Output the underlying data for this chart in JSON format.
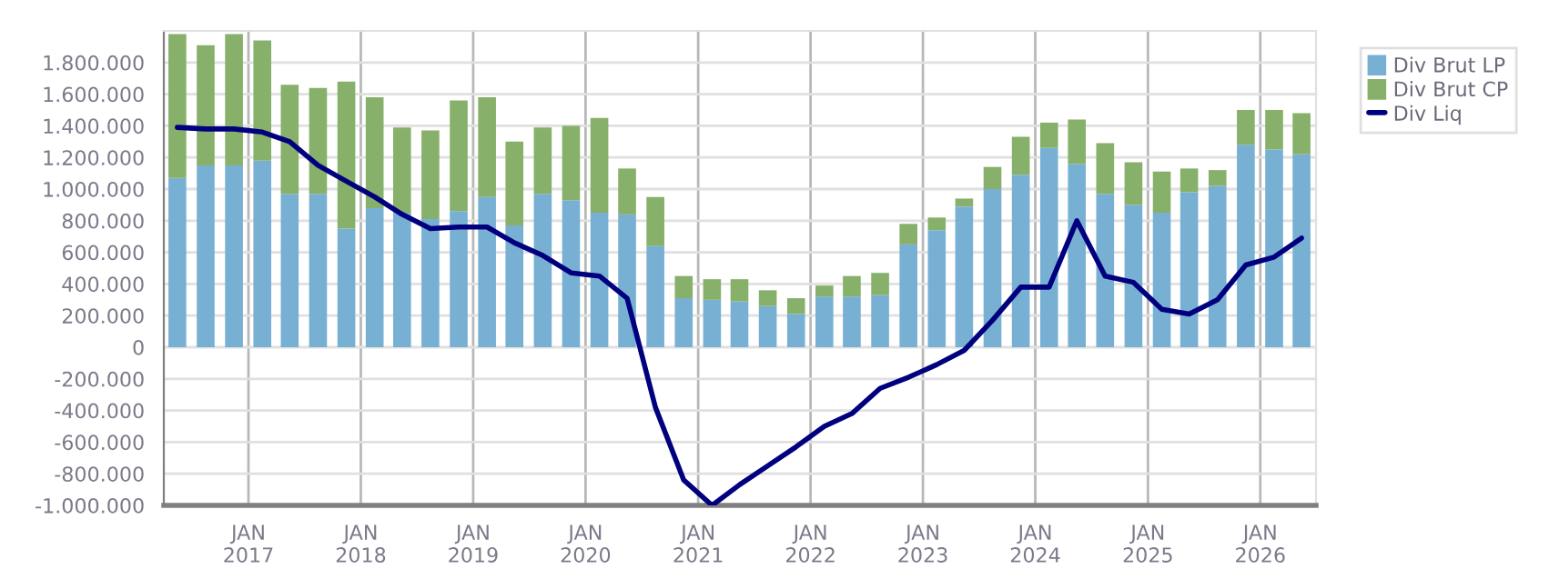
{
  "chart_data": {
    "type": "bar",
    "stacked": true,
    "x": [
      "2016-05-15",
      "2016-08-15",
      "2016-11-15",
      "2017-02-15",
      "2017-05-15",
      "2017-08-15",
      "2017-11-15",
      "2018-02-15",
      "2018-05-15",
      "2018-08-15",
      "2018-11-15",
      "2019-02-15",
      "2019-05-15",
      "2019-08-15",
      "2019-11-15",
      "2020-02-15",
      "2020-05-15",
      "2020-08-15",
      "2020-11-15",
      "2021-02-15",
      "2021-05-15",
      "2021-08-15",
      "2021-11-15",
      "2022-02-15",
      "2022-05-15",
      "2022-08-15",
      "2022-11-15",
      "2023-02-15",
      "2023-05-15",
      "2023-08-15",
      "2023-11-15",
      "2024-02-15",
      "2024-05-15",
      "2024-08-15",
      "2024-11-15",
      "2025-02-15",
      "2025-05-15",
      "2025-08-15",
      "2025-11-15",
      "2026-02-15",
      "2026-05-15"
    ],
    "series": [
      {
        "name": "Div Brut LP",
        "color": "#78b0d4",
        "values": [
          1070000,
          1150000,
          1150000,
          1180000,
          970000,
          970000,
          750000,
          880000,
          850000,
          810000,
          860000,
          950000,
          770000,
          970000,
          930000,
          850000,
          840000,
          640000,
          310000,
          300000,
          290000,
          260000,
          210000,
          320000,
          320000,
          330000,
          650000,
          740000,
          890000,
          1000000,
          1090000,
          1260000,
          1160000,
          970000,
          900000,
          850000,
          980000,
          1020000,
          1280000,
          1250000,
          1220000
        ]
      },
      {
        "name": "Div Brut CP",
        "color": "#87b06a",
        "values": [
          910000,
          760000,
          830000,
          760000,
          690000,
          670000,
          930000,
          700000,
          540000,
          560000,
          700000,
          630000,
          530000,
          420000,
          470000,
          600000,
          290000,
          310000,
          140000,
          130000,
          140000,
          100000,
          100000,
          70000,
          130000,
          140000,
          130000,
          80000,
          50000,
          140000,
          240000,
          160000,
          280000,
          320000,
          270000,
          260000,
          150000,
          100000,
          220000,
          250000,
          260000
        ]
      },
      {
        "name": "Div Liq",
        "type": "line",
        "color": "#00007f",
        "values": [
          1390000,
          1380000,
          1380000,
          1360000,
          1300000,
          1150000,
          1050000,
          950000,
          840000,
          750000,
          760000,
          760000,
          660000,
          580000,
          470000,
          450000,
          310000,
          -380000,
          -840000,
          -1000000,
          -870000,
          -750000,
          -630000,
          -500000,
          -420000,
          -260000,
          -190000,
          -110000,
          -20000,
          170000,
          380000,
          380000,
          800000,
          450000,
          410000,
          240000,
          210000,
          300000,
          520000,
          570000,
          690000
        ]
      }
    ],
    "xlim": [
      "2016-04-01",
      "2026-07-01"
    ],
    "xticks": [
      {
        "value": "2017-01-01",
        "label": "JAN\n2017"
      },
      {
        "value": "2018-01-01",
        "label": "JAN\n2018"
      },
      {
        "value": "2019-01-01",
        "label": "JAN\n2019"
      },
      {
        "value": "2020-01-01",
        "label": "JAN\n2020"
      },
      {
        "value": "2021-01-01",
        "label": "JAN\n2021"
      },
      {
        "value": "2022-01-01",
        "label": "JAN\n2022"
      },
      {
        "value": "2023-01-01",
        "label": "JAN\n2023"
      },
      {
        "value": "2024-01-01",
        "label": "JAN\n2024"
      },
      {
        "value": "2025-01-01",
        "label": "JAN\n2025"
      },
      {
        "value": "2026-01-01",
        "label": "JAN\n2026"
      }
    ],
    "ylim": [
      -1000000,
      2000000
    ],
    "yticks": [
      {
        "value": -1000000,
        "label": "-1.000.000"
      },
      {
        "value": -800000,
        "label": "-800.000"
      },
      {
        "value": -600000,
        "label": "-600.000"
      },
      {
        "value": -400000,
        "label": "-400.000"
      },
      {
        "value": -200000,
        "label": "-200.000"
      },
      0,
      {
        "value": 200000,
        "label": "200.000"
      },
      {
        "value": 400000,
        "label": "400.000"
      },
      {
        "value": 600000,
        "label": "600.000"
      },
      {
        "value": 800000,
        "label": "800.000"
      },
      {
        "value": 1000000,
        "label": "1.000.000"
      },
      {
        "value": 1200000,
        "label": "1.200.000"
      },
      {
        "value": 1400000,
        "label": "1.400.000"
      },
      {
        "value": 1600000,
        "label": "1.600.000"
      },
      {
        "value": 1800000,
        "label": "1.800.000"
      }
    ],
    "grid": true,
    "legend": "top right",
    "marker": "none",
    "line_style": "solid"
  }
}
